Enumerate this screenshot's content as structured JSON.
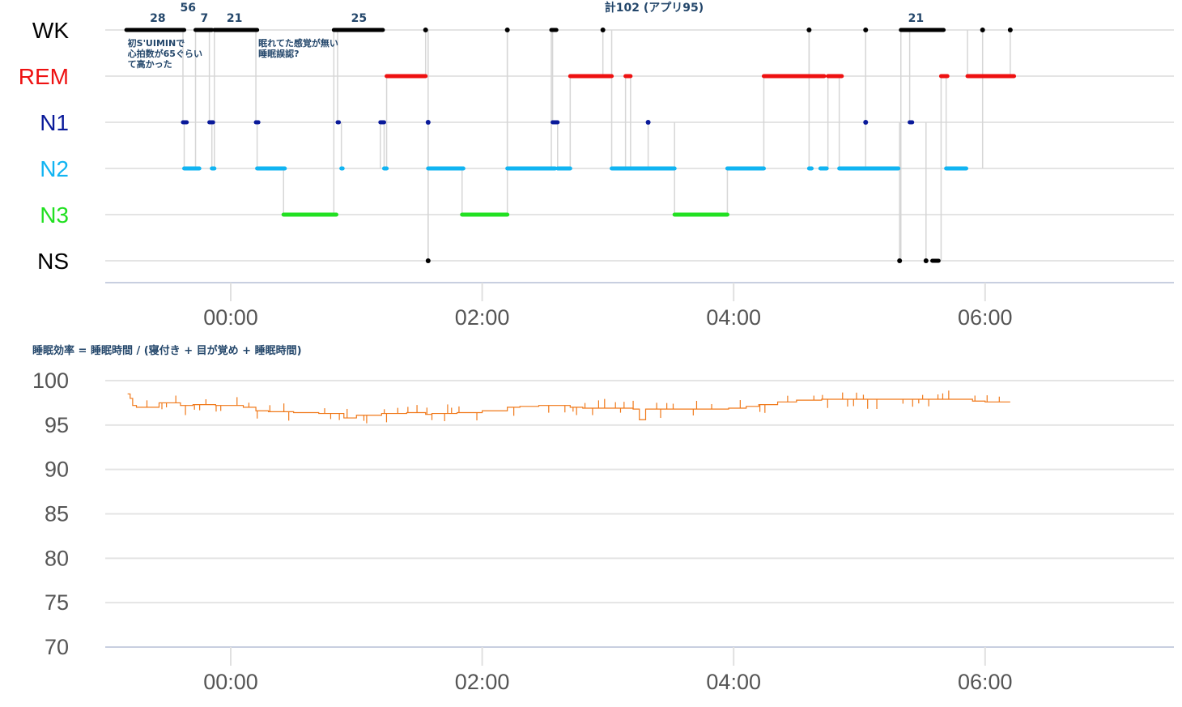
{
  "chart_data": [
    {
      "type": "scatter",
      "subtype": "hypnogram",
      "title": "計102 (アプリ95)",
      "stages": [
        "WK",
        "REM",
        "N1",
        "N2",
        "N3",
        "NS"
      ],
      "stage_colors": {
        "WK": "#000000",
        "REM": "#ee1111",
        "N1": "#0a1a9a",
        "N2": "#11b4f2",
        "N3": "#22e022",
        "NS": "#000000"
      },
      "x_unit": "hours since 00:00",
      "xlim": [
        -1.0,
        7.5
      ],
      "x_ticks": [
        "00:00",
        "02:00",
        "04:00",
        "06:00"
      ],
      "segments": [
        {
          "stage": "WK",
          "start": -0.83,
          "end": -0.37
        },
        {
          "stage": "N1",
          "start": -0.38,
          "end": -0.35
        },
        {
          "stage": "N2",
          "start": -0.37,
          "end": -0.25
        },
        {
          "stage": "WK",
          "start": -0.28,
          "end": -0.15
        },
        {
          "stage": "N1",
          "start": -0.17,
          "end": -0.14
        },
        {
          "stage": "N2",
          "start": -0.15,
          "end": -0.13
        },
        {
          "stage": "WK",
          "start": -0.13,
          "end": 0.21
        },
        {
          "stage": "N1",
          "start": 0.2,
          "end": 0.22
        },
        {
          "stage": "N2",
          "start": 0.21,
          "end": 0.43
        },
        {
          "stage": "N3",
          "start": 0.42,
          "end": 0.84
        },
        {
          "stage": "WK",
          "start": 0.82,
          "end": 1.21
        },
        {
          "stage": "N1",
          "start": 0.85,
          "end": 0.86
        },
        {
          "stage": "N2",
          "start": 0.88,
          "end": 0.89
        },
        {
          "stage": "N1",
          "start": 1.19,
          "end": 1.22
        },
        {
          "stage": "N2",
          "start": 1.22,
          "end": 1.24
        },
        {
          "stage": "REM",
          "start": 1.24,
          "end": 1.55
        },
        {
          "stage": "WK",
          "start": 1.55,
          "end": 1.55
        },
        {
          "stage": "NS",
          "start": 1.57,
          "end": 1.57
        },
        {
          "stage": "N1",
          "start": 1.57,
          "end": 1.57
        },
        {
          "stage": "N2",
          "start": 1.57,
          "end": 1.85
        },
        {
          "stage": "N3",
          "start": 1.84,
          "end": 2.2
        },
        {
          "stage": "WK",
          "start": 2.2,
          "end": 2.2
        },
        {
          "stage": "N2",
          "start": 2.2,
          "end": 2.58
        },
        {
          "stage": "WK",
          "start": 2.55,
          "end": 2.59
        },
        {
          "stage": "N1",
          "start": 2.56,
          "end": 2.6
        },
        {
          "stage": "N2",
          "start": 2.6,
          "end": 2.7
        },
        {
          "stage": "REM",
          "start": 2.7,
          "end": 3.03
        },
        {
          "stage": "WK",
          "start": 2.96,
          "end": 2.96
        },
        {
          "stage": "N2",
          "start": 3.03,
          "end": 3.18
        },
        {
          "stage": "REM",
          "start": 3.14,
          "end": 3.18
        },
        {
          "stage": "N2",
          "start": 3.18,
          "end": 3.53
        },
        {
          "stage": "N1",
          "start": 3.32,
          "end": 3.32
        },
        {
          "stage": "N3",
          "start": 3.53,
          "end": 3.95
        },
        {
          "stage": "N2",
          "start": 3.95,
          "end": 4.24
        },
        {
          "stage": "REM",
          "start": 4.24,
          "end": 4.72
        },
        {
          "stage": "WK",
          "start": 4.6,
          "end": 4.6
        },
        {
          "stage": "N2",
          "start": 4.6,
          "end": 4.62
        },
        {
          "stage": "N2",
          "start": 4.69,
          "end": 4.74
        },
        {
          "stage": "REM",
          "start": 4.75,
          "end": 4.86
        },
        {
          "stage": "N2",
          "start": 4.84,
          "end": 5.31
        },
        {
          "stage": "WK",
          "start": 5.05,
          "end": 5.05
        },
        {
          "stage": "N1",
          "start": 5.05,
          "end": 5.05
        },
        {
          "stage": "NS",
          "start": 5.32,
          "end": 5.32
        },
        {
          "stage": "WK",
          "start": 5.33,
          "end": 5.67
        },
        {
          "stage": "N1",
          "start": 5.4,
          "end": 5.42
        },
        {
          "stage": "NS",
          "start": 5.53,
          "end": 5.53
        },
        {
          "stage": "NS",
          "start": 5.58,
          "end": 5.63
        },
        {
          "stage": "REM",
          "start": 5.65,
          "end": 5.7
        },
        {
          "stage": "N2",
          "start": 5.69,
          "end": 5.85
        },
        {
          "stage": "WK",
          "start": 5.98,
          "end": 5.98
        },
        {
          "stage": "REM",
          "start": 5.86,
          "end": 6.23
        },
        {
          "stage": "WK",
          "start": 6.2,
          "end": 6.2
        }
      ],
      "annotations": [
        {
          "text": "28",
          "x": -0.58,
          "stage": "WK"
        },
        {
          "text": "56",
          "x": -0.34,
          "stage": "WK",
          "raised": true
        },
        {
          "text": "7",
          "x": -0.21,
          "stage": "WK"
        },
        {
          "text": "21",
          "x": 0.03,
          "stage": "WK"
        },
        {
          "text": "25",
          "x": 1.02,
          "stage": "WK"
        },
        {
          "text": "21",
          "x": 5.45,
          "stage": "WK"
        }
      ],
      "notes": [
        {
          "lines": [
            "初S'UIMINで",
            "心拍数が65ぐらい",
            "て高かった"
          ],
          "x": -0.82
        },
        {
          "lines": [
            "眠れてた感覚が無い",
            "睡眠誤認?"
          ],
          "x": 0.22
        }
      ]
    },
    {
      "type": "line",
      "title": "睡眠効率 = 睡眠時間 / (寝付き + 目が覚め + 睡眠時間)",
      "x_unit": "hours since 00:00",
      "xlim": [
        -1.0,
        7.5
      ],
      "x_ticks": [
        "00:00",
        "02:00",
        "04:00",
        "06:00"
      ],
      "y_ticks": [
        70,
        75,
        80,
        85,
        90,
        95,
        100
      ],
      "ylim": [
        70,
        100
      ],
      "color": "#f07818",
      "x": [
        -0.82,
        -0.8,
        -0.78,
        -0.75,
        -0.6,
        -0.57,
        -0.4,
        -0.3,
        -0.12,
        0.1,
        0.2,
        0.3,
        0.5,
        0.7,
        0.9,
        1.0,
        1.2,
        1.4,
        1.55,
        1.6,
        1.8,
        2.0,
        2.2,
        2.3,
        2.45,
        2.6,
        2.7,
        2.8,
        3.0,
        3.2,
        3.25,
        3.3,
        3.5,
        3.7,
        3.9,
        3.96,
        4.1,
        4.2,
        4.35,
        4.5,
        4.7,
        4.9,
        5.1,
        5.3,
        5.5,
        5.7,
        5.9,
        6.0,
        6.1,
        6.2
      ],
      "y": [
        98.5,
        98.0,
        97.2,
        97.0,
        97.0,
        97.5,
        97.2,
        97.3,
        97.2,
        97.0,
        96.6,
        96.5,
        96.4,
        96.3,
        95.8,
        96.1,
        96.3,
        96.4,
        96.2,
        96.3,
        96.4,
        96.6,
        97.0,
        97.1,
        97.2,
        97.2,
        97.0,
        96.9,
        96.9,
        96.8,
        95.6,
        96.8,
        96.8,
        96.8,
        96.8,
        96.9,
        97.1,
        97.3,
        97.6,
        97.8,
        97.9,
        97.9,
        97.9,
        97.9,
        97.9,
        97.9,
        97.7,
        97.6,
        97.6,
        97.6
      ]
    }
  ]
}
